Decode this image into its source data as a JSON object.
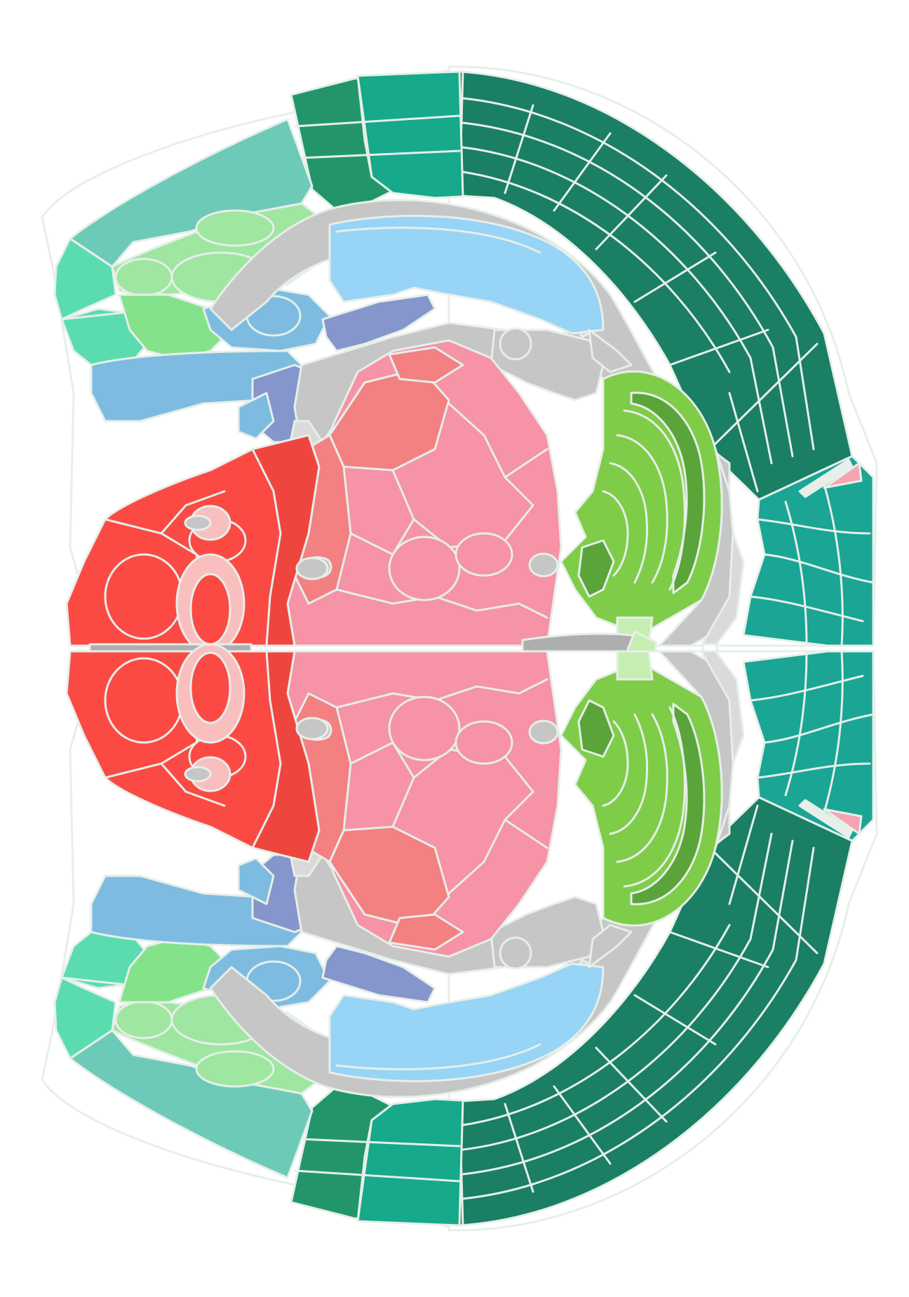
{
  "figure": {
    "kind": "atlas-section",
    "text_labels": []
  },
  "colors": {
    "background": "#ffffff",
    "boundary": "#e6efe9",
    "cortex_dark": "#1a7f64",
    "cortex_mid": "#22966a",
    "cortex_teal": "#16a98a",
    "cortex_caudal": "#1aa595",
    "lateral_teal": "#6dcab8",
    "lateral_green": "#5bdcb0",
    "olfactory_light": "#9fe6a0",
    "olfactory_green": "#84e28a",
    "fiber_gray": "#c6c6c6",
    "fiber_gray_light": "#dadada",
    "ventricle_gray": "#aeaeae",
    "hippocampus_blue": "#97d4f6",
    "striatum_blue": "#7dbce0",
    "pallidum_violet": "#8596cc",
    "thalamus_pink": "#f693a6",
    "thalamus_salmon": "#f38182",
    "hypothalamus_red": "#ee463f",
    "hypothalamus_bright": "#fb4a44",
    "hypothalamus_light": "#f9bfbf",
    "cerebellum_green": "#7fcc49",
    "cerebellum_dark": "#5aa43a",
    "cerebellum_light": "#c6eeb2",
    "pink_marker": "#f6a4b2"
  },
  "regions": [
    "isocortex-dark",
    "isocortex-mid",
    "isocortex-teal",
    "caudal-cortex",
    "lateral-cortex",
    "olfactory-areas",
    "fiber-tracts",
    "hippocampal-formation",
    "striatum",
    "pallidum",
    "thalamus",
    "midbrain",
    "hypothalamus",
    "cerebellum"
  ]
}
